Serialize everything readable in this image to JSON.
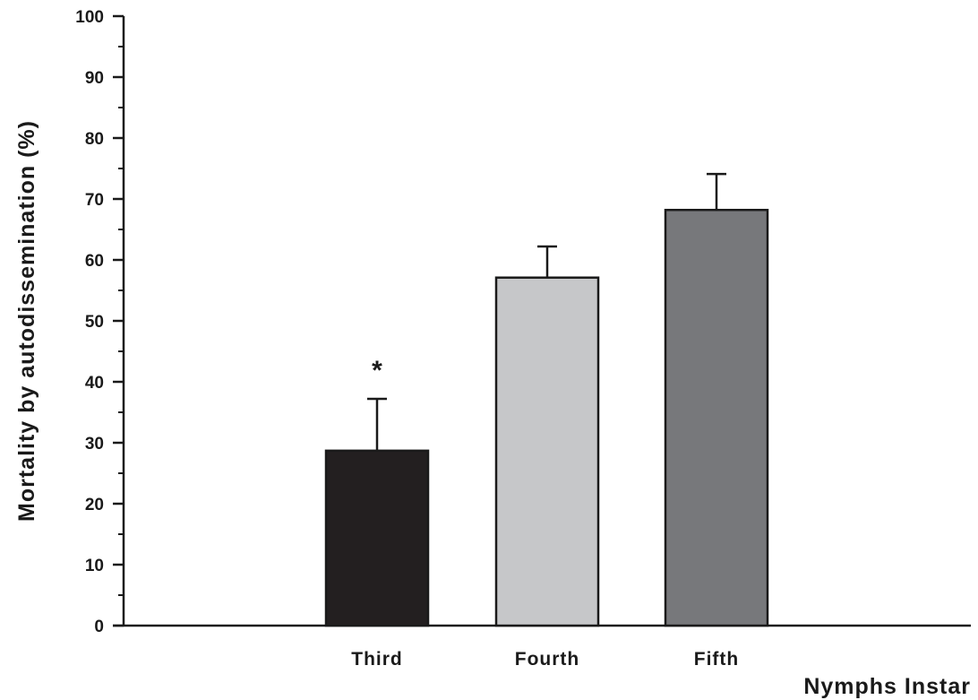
{
  "chart_data": {
    "type": "bar",
    "categories": [
      "Third",
      "Fourth",
      "Fifth"
    ],
    "values": [
      28.7,
      57.1,
      68.2
    ],
    "errors": [
      8.5,
      5.1,
      5.9
    ],
    "colors": [
      "#231f20",
      "#c6c7c9",
      "#77787b"
    ],
    "annotations": [
      "*",
      "",
      ""
    ],
    "xlabel": "Nymphs Instar",
    "ylabel": "Mortality by autodissemination (%)",
    "ylim": [
      0,
      100
    ],
    "yticks": [
      0,
      10,
      20,
      30,
      40,
      50,
      60,
      70,
      80,
      90,
      100
    ],
    "grid": false
  }
}
